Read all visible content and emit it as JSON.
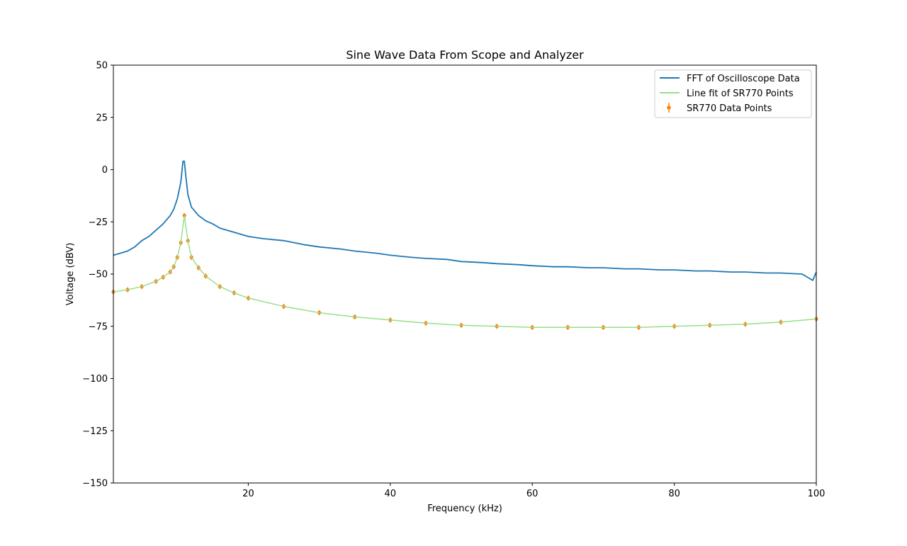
{
  "chart_data": {
    "type": "line",
    "title": "Sine Wave Data From Scope and Analyzer",
    "xlabel": "Frequency (kHz)",
    "ylabel": "Voltage (dBV)",
    "xlim": [
      1,
      100
    ],
    "ylim": [
      -150,
      50
    ],
    "xticks": [
      20,
      40,
      60,
      80,
      100
    ],
    "yticks": [
      50,
      25,
      0,
      -25,
      -50,
      -75,
      -100,
      -125,
      -150
    ],
    "grid": false,
    "legend_position": "top-right",
    "legend_entries": [
      "FFT of Oscilloscope Data",
      "Line fit of SR770 Points",
      "SR770 Data Points"
    ],
    "colors": {
      "fft": "#1f77b4",
      "fit": "#98df8a",
      "points": "#ff7f0e",
      "axes": "#000000"
    },
    "series": [
      {
        "name": "FFT of Oscilloscope Data",
        "kind": "line",
        "x": [
          1,
          2,
          3,
          4,
          5,
          6,
          7,
          8,
          9,
          9.5,
          10,
          10.5,
          10.8,
          11,
          11.2,
          11.5,
          12,
          13,
          14,
          15,
          16,
          18,
          20,
          22,
          25,
          28,
          30,
          33,
          35,
          38,
          40,
          43,
          45,
          48,
          50,
          53,
          55,
          58,
          60,
          63,
          65,
          68,
          70,
          73,
          75,
          78,
          80,
          83,
          85,
          88,
          90,
          93,
          95,
          98,
          99.5,
          100
        ],
        "y": [
          -41,
          -40,
          -39,
          -37,
          -34,
          -32,
          -29,
          -26,
          -22,
          -19,
          -14,
          -6,
          4,
          4,
          -3,
          -12,
          -18,
          -22,
          -24.5,
          -26,
          -28,
          -30,
          -32,
          -33,
          -34,
          -36,
          -37,
          -38,
          -39,
          -40,
          -41,
          -42,
          -42.5,
          -43,
          -44,
          -44.5,
          -45,
          -45.5,
          -46,
          -46.5,
          -46.5,
          -47,
          -47,
          -47.5,
          -47.5,
          -48,
          -48,
          -48.5,
          -48.5,
          -49,
          -49,
          -49.5,
          -49.5,
          -50,
          -53,
          -49
        ]
      },
      {
        "name": "Line fit of SR770 Points",
        "kind": "line",
        "x": [
          1,
          3,
          5,
          7,
          8,
          9,
          9.5,
          10,
          10.5,
          11,
          11.5,
          12,
          13,
          14,
          16,
          18,
          20,
          25,
          30,
          35,
          40,
          45,
          50,
          55,
          60,
          65,
          70,
          75,
          80,
          85,
          90,
          95,
          100
        ],
        "y": [
          -58.5,
          -57.5,
          -56,
          -53.5,
          -51.5,
          -49,
          -46.5,
          -42,
          -35,
          -22,
          -34,
          -42,
          -47,
          -51,
          -56,
          -59,
          -61.5,
          -65.5,
          -68.5,
          -70.5,
          -72,
          -73.5,
          -74.5,
          -75,
          -75.5,
          -75.5,
          -75.5,
          -75.5,
          -75,
          -74.5,
          -74,
          -73,
          -71.5
        ]
      },
      {
        "name": "SR770 Data Points",
        "kind": "scatter-errorbar",
        "x": [
          1,
          3,
          5,
          7,
          8,
          9,
          9.5,
          10,
          10.5,
          11,
          11.5,
          12,
          13,
          14,
          16,
          18,
          20,
          25,
          30,
          35,
          40,
          45,
          50,
          55,
          60,
          65,
          70,
          75,
          80,
          85,
          90,
          95,
          100
        ],
        "y": [
          -58.5,
          -57.5,
          -56,
          -53.5,
          -51.5,
          -49,
          -46.5,
          -42,
          -35,
          -22,
          -34,
          -42,
          -47,
          -51,
          -56,
          -59,
          -61.5,
          -65.5,
          -68.5,
          -70.5,
          -72,
          -73.5,
          -74.5,
          -75,
          -75.5,
          -75.5,
          -75.5,
          -75.5,
          -75,
          -74.5,
          -74,
          -73,
          -71.5
        ]
      }
    ]
  }
}
